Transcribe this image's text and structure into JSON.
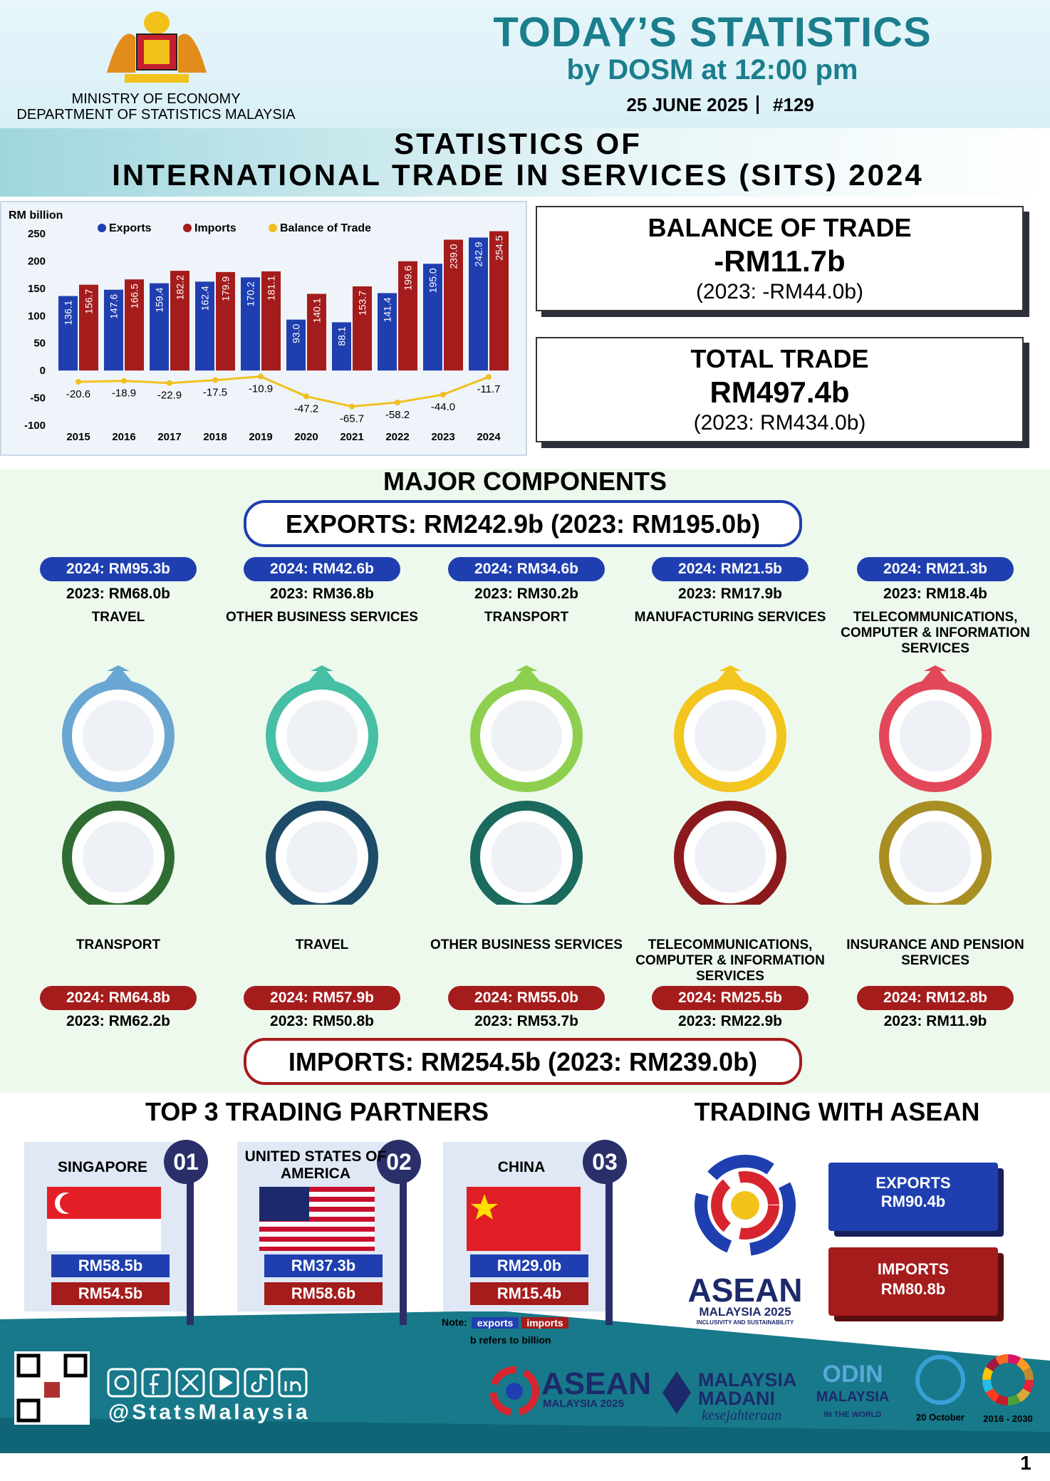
{
  "header": {
    "ministry": "MINISTRY OF ECONOMY",
    "department": "DEPARTMENT OF STATISTICS MALAYSIA",
    "title": "TODAY’S STATISTICS",
    "subtitle": "by DOSM at 12:00 pm",
    "date": "25 JUNE 2025",
    "issue": "#129"
  },
  "banner": {
    "line1": "STATISTICS OF",
    "line2": "INTERNATIONAL TRADE IN SERVICES (SITS) 2024"
  },
  "chart_data": {
    "type": "bar",
    "y_label": "RM billion",
    "categories": [
      "2015",
      "2016",
      "2017",
      "2018",
      "2019",
      "2020",
      "2021",
      "2022",
      "2023",
      "2024"
    ],
    "series": [
      {
        "name": "Exports",
        "type": "bar",
        "color": "#1f3fb0",
        "values": [
          136.1,
          147.6,
          159.4,
          162.4,
          170.2,
          93.0,
          88.1,
          141.4,
          195.0,
          242.9
        ],
        "value_labels": [
          "136.1",
          "147.6",
          "159.4",
          "162.4",
          "170.2",
          "93.0",
          "88.1",
          "141.4",
          "195.0",
          "242.9"
        ]
      },
      {
        "name": "Imports",
        "type": "bar",
        "color": "#a51c1c",
        "values": [
          156.7,
          166.5,
          182.2,
          179.9,
          181.1,
          140.1,
          153.7,
          199.6,
          239.0,
          254.5
        ],
        "value_labels": [
          "156.7",
          "166.5",
          "182.2",
          "179.9",
          "181.1",
          "140.1",
          "153.7",
          "199.6",
          "239.0",
          "254.5"
        ]
      },
      {
        "name": "Balance of Trade",
        "type": "line",
        "color": "#f0c020",
        "values": [
          -20.6,
          -18.9,
          -22.9,
          -17.5,
          -10.9,
          -47.2,
          -65.7,
          -58.2,
          -44.0,
          -11.7
        ],
        "value_labels": [
          "-20.6",
          "-18.9",
          "-22.9",
          "-17.5",
          "-10.9",
          "-47.2",
          "-65.7",
          "-58.2",
          "-44.0",
          "-11.7"
        ]
      }
    ],
    "ylim": [
      -100,
      250
    ],
    "yticks": [
      -100,
      -50,
      0,
      50,
      100,
      150,
      200,
      250
    ],
    "grid": false,
    "legend": "top"
  },
  "summary": [
    {
      "title": "BALANCE OF TRADE",
      "value": "-RM11.7b",
      "previous": "(2023: -RM44.0b)"
    },
    {
      "title": "TOTAL TRADE",
      "value": "RM497.4b",
      "previous": "(2023: RM434.0b)"
    }
  ],
  "components": {
    "title": "MAJOR COMPONENTS",
    "exports_total": "EXPORTS: RM242.9b (2023: RM195.0b)",
    "exports": [
      {
        "current": "2024: RM95.3b",
        "previous": "2023: RM68.0b",
        "name": "TRAVEL"
      },
      {
        "current": "2024: RM42.6b",
        "previous": "2023: RM36.8b",
        "name": "OTHER BUSINESS SERVICES"
      },
      {
        "current": "2024: RM34.6b",
        "previous": "2023: RM30.2b",
        "name": "TRANSPORT"
      },
      {
        "current": "2024: RM21.5b",
        "previous": "2023: RM17.9b",
        "name": "MANUFACTURING SERVICES"
      },
      {
        "current": "2024: RM21.3b",
        "previous": "2023: RM18.4b",
        "name": "TELECOMMUNICATIONS, COMPUTER & INFORMATION SERVICES"
      }
    ],
    "imports": [
      {
        "current": "2024: RM64.8b",
        "previous": "2023: RM62.2b",
        "name": "TRANSPORT"
      },
      {
        "current": "2024: RM57.9b",
        "previous": "2023: RM50.8b",
        "name": "TRAVEL"
      },
      {
        "current": "2024: RM55.0b",
        "previous": "2023: RM53.7b",
        "name": "OTHER BUSINESS SERVICES"
      },
      {
        "current": "2024: RM25.5b",
        "previous": "2023: RM22.9b",
        "name": "TELECOMMUNICATIONS, COMPUTER & INFORMATION SERVICES"
      },
      {
        "current": "2024: RM12.8b",
        "previous": "2023: RM11.9b",
        "name": "INSURANCE AND PENSION SERVICES"
      }
    ],
    "imports_total": "IMPORTS: RM254.5b (2023: RM239.0b)"
  },
  "partners": {
    "title": "TOP 3 TRADING PARTNERS",
    "items": [
      {
        "rank": "01",
        "name": "SINGAPORE",
        "exports": "RM58.5b",
        "imports": "RM54.5b"
      },
      {
        "rank": "02",
        "name": "UNITED STATES OF AMERICA",
        "exports": "RM37.3b",
        "imports": "RM58.6b"
      },
      {
        "rank": "03",
        "name": "CHINA",
        "exports": "RM29.0b",
        "imports": "RM15.4b"
      }
    ],
    "note": {
      "label": "Note:",
      "exports": "exports",
      "imports": "imports",
      "unit": "b refers to billion"
    }
  },
  "asean": {
    "title": "TRADING WITH ASEAN",
    "logo": "ASEAN",
    "logo_sub": "MALAYSIA 2025",
    "logo_tag": "INCLUSIVITY AND SUSTAINABILITY",
    "exports_label": "EXPORTS",
    "exports": "RM90.4b",
    "imports_label": "IMPORTS",
    "imports": "RM80.8b"
  },
  "footer": {
    "handle": "@StatsMalaysia",
    "madani": "MALAYSIA",
    "madani2": "MADANI",
    "madani_sub": "kesejahteraan",
    "odin": "ODIN",
    "odin_sub": "MALAYSIA",
    "odin_tag": "IN THE WORLD",
    "day": "20 October",
    "sdg_years": "2016 - 2030",
    "page": "1"
  }
}
